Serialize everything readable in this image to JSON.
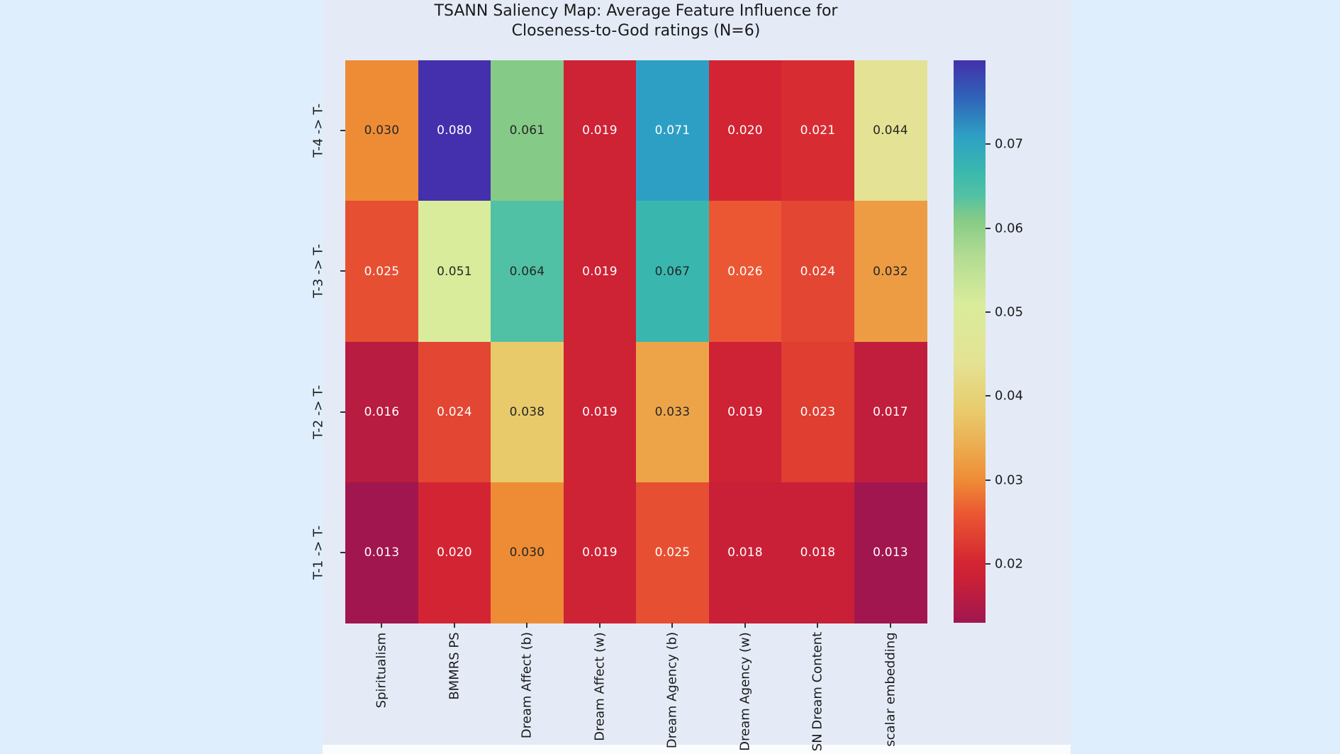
{
  "title": {
    "line1": "TSANN Saliency Map: Average Feature Influence for",
    "line2": "Closeness-to-God ratings (N=6)"
  },
  "chart_data": {
    "type": "heatmap",
    "title": "TSANN Saliency Map: Average Feature Influence for Closeness-to-God ratings (N=6)",
    "x_categories": [
      "Spiritualism",
      "BMMRS PS",
      "Dream Affect (b)",
      "Dream Affect (w)",
      "Dream Agency (b)",
      "Dream Agency (w)",
      "SN Dream Content",
      "scalar embedding"
    ],
    "y_categories": [
      "T-4 -> T-",
      "T-3 -> T-",
      "T-2 -> T-",
      "T-1 -> T-"
    ],
    "values": [
      [
        0.03,
        0.08,
        0.061,
        0.019,
        0.071,
        0.02,
        0.021,
        0.044
      ],
      [
        0.025,
        0.051,
        0.064,
        0.019,
        0.067,
        0.026,
        0.024,
        0.032
      ],
      [
        0.016,
        0.024,
        0.038,
        0.019,
        0.033,
        0.019,
        0.023,
        0.017
      ],
      [
        0.013,
        0.02,
        0.03,
        0.019,
        0.025,
        0.018,
        0.018,
        0.013
      ]
    ],
    "annotation_decimals": 3,
    "vmin": 0.013,
    "vmax": 0.08,
    "colorbar": {
      "position": "right",
      "ticks": [
        "0.07",
        "0.06",
        "0.05",
        "0.04",
        "0.03",
        "0.02"
      ],
      "tick_values": [
        0.07,
        0.06,
        0.05,
        0.04,
        0.03,
        0.02
      ]
    },
    "colormap": {
      "name": "spectral-like",
      "stops": [
        [
          0.0,
          "#A1164F"
        ],
        [
          0.075,
          "#C92038"
        ],
        [
          0.104,
          "#D32433"
        ],
        [
          0.15,
          "#DF3E31"
        ],
        [
          0.194,
          "#EB5733"
        ],
        [
          0.254,
          "#EE8C36"
        ],
        [
          0.3,
          "#EDA54A"
        ],
        [
          0.373,
          "#E8CA6A"
        ],
        [
          0.463,
          "#E4E294"
        ],
        [
          0.567,
          "#D9EC9B"
        ],
        [
          0.65,
          "#B3DC92"
        ],
        [
          0.716,
          "#86CB87"
        ],
        [
          0.761,
          "#50C1A4"
        ],
        [
          0.806,
          "#39B7AF"
        ],
        [
          0.866,
          "#2E9FC4"
        ],
        [
          0.935,
          "#2F62B7"
        ],
        [
          1.0,
          "#4430AC"
        ]
      ]
    },
    "annotation_colors": {
      "dark": "#262626",
      "light": "#FFFFFF"
    },
    "grid": false,
    "legend_position": "right"
  },
  "colors": {
    "page_bg": "#DFEEFC",
    "figure_bg": "#E4EBF7",
    "footer_strip": "#FBFCFE",
    "tick": "#333333",
    "text": "#1A1A1A"
  }
}
